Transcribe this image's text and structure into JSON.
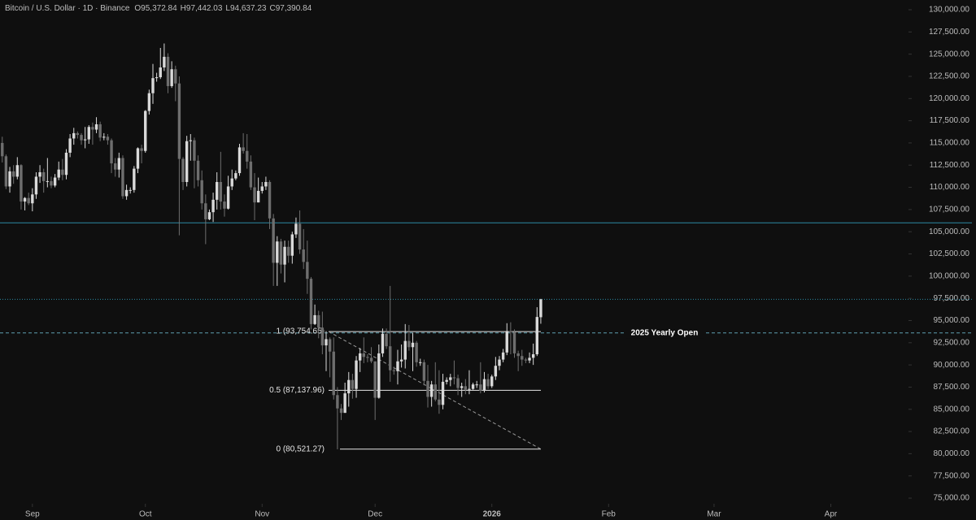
{
  "chart_data": {
    "type": "candlestick",
    "title": "Bitcoin / U.S. Dollar · 1D · Binance",
    "ohlc_legend": [
      {
        "key": "O",
        "text": "95,372.84"
      },
      {
        "key": "H",
        "text": "97,442.03"
      },
      {
        "key": "L",
        "text": "94,637.23"
      },
      {
        "key": "C",
        "text": "97,390.84"
      }
    ],
    "up_color": "#d9d9d9",
    "down_color": "#6e6e6e",
    "open": [
      115000,
      113500,
      110100,
      111800,
      111200,
      112500,
      108400,
      108800,
      108200,
      109200,
      111200,
      111700,
      110700,
      110700,
      110200,
      111100,
      112000,
      111400,
      113900,
      115500,
      116100,
      115900,
      115300,
      115400,
      116800,
      116500,
      117100,
      115600,
      115700,
      115300,
      112700,
      112000,
      113300,
      109000,
      109700,
      109700,
      112100,
      114400,
      114100,
      118600,
      120600,
      122300,
      122400,
      123500,
      124700,
      121400,
      123300,
      121700,
      113200,
      110600,
      115200,
      115300,
      113000,
      110800,
      108200,
      106400,
      107200,
      108600,
      110600,
      108400,
      107600,
      110100,
      111000,
      111600,
      114500,
      114100,
      112900,
      110000,
      108300,
      109600,
      110100,
      110600,
      106500,
      101500,
      103900,
      101300,
      103300,
      102300,
      104700,
      105900,
      103000,
      101600,
      99700,
      94600,
      95600,
      94200,
      92200,
      92900,
      91500,
      86600,
      85100,
      84600,
      86800,
      88300,
      87300,
      90500,
      91300,
      90900,
      90800,
      90400,
      86300,
      91300,
      93500,
      92100,
      89400,
      89300,
      90400,
      90600,
      92700,
      92000,
      92500,
      90300,
      90300,
      88200,
      86400,
      87800,
      86100,
      85500,
      88100,
      88300,
      88600,
      88500,
      87400,
      87600,
      87200,
      87300,
      87800,
      87800,
      87100,
      88400,
      87600,
      88700,
      89900,
      90600,
      91400,
      93800,
      93700,
      91300,
      91000,
      90600,
      90500,
      90800,
      91200,
      95372.84
    ],
    "high": [
      115700,
      113700,
      112300,
      112500,
      113400,
      112600,
      108900,
      109400,
      109900,
      111700,
      112500,
      112100,
      113300,
      111200,
      111500,
      112900,
      113200,
      114300,
      116000,
      116700,
      116300,
      116100,
      116800,
      117000,
      117300,
      117900,
      117400,
      116100,
      116000,
      115500,
      113300,
      113900,
      113600,
      110300,
      110000,
      112400,
      114500,
      114800,
      118700,
      121000,
      123900,
      122900,
      125700,
      126200,
      125100,
      124200,
      123700,
      122500,
      113400,
      115800,
      116000,
      115600,
      113600,
      111900,
      109200,
      107500,
      109400,
      111700,
      114000,
      109200,
      111300,
      112000,
      111900,
      114900,
      116100,
      116000,
      113600,
      111600,
      111100,
      110600,
      111200,
      110800,
      107000,
      104500,
      104200,
      104000,
      104000,
      105000,
      106600,
      107400,
      105300,
      104000,
      99900,
      96800,
      96100,
      96000,
      93800,
      93100,
      93100,
      87500,
      85600,
      88000,
      89200,
      89000,
      91000,
      91900,
      93100,
      91200,
      92000,
      90400,
      92300,
      94100,
      94100,
      98900,
      89800,
      91700,
      92300,
      94600,
      94500,
      93600,
      92700,
      90700,
      90600,
      90000,
      88200,
      90300,
      89400,
      89000,
      88600,
      89000,
      90500,
      88900,
      88000,
      88400,
      89400,
      88000,
      88200,
      90300,
      89200,
      89000,
      88900,
      90900,
      91000,
      91800,
      94700,
      94800,
      94000,
      91600,
      91700,
      90800,
      91400,
      92400,
      96500,
      97442.03
    ],
    "low": [
      112800,
      109800,
      109400,
      110400,
      110900,
      107500,
      107400,
      108000,
      107300,
      108700,
      110500,
      109400,
      110000,
      109900,
      110000,
      110800,
      110800,
      110900,
      113400,
      114800,
      115500,
      114800,
      114400,
      114900,
      114800,
      116100,
      115200,
      115300,
      114800,
      111600,
      111200,
      111100,
      108700,
      108600,
      109300,
      109400,
      111600,
      112700,
      113900,
      118200,
      119400,
      121900,
      122200,
      123100,
      120600,
      121200,
      119700,
      104600,
      109700,
      110100,
      113000,
      109900,
      110100,
      107500,
      103600,
      106300,
      106100,
      107500,
      107500,
      106700,
      107500,
      109700,
      110800,
      111300,
      113800,
      112100,
      109700,
      106300,
      108300,
      109300,
      109700,
      105300,
      98900,
      98900,
      100300,
      99300,
      101500,
      101400,
      104300,
      102500,
      100800,
      98000,
      94000,
      94500,
      93000,
      91200,
      89300,
      88600,
      86100,
      80500,
      83800,
      84600,
      85300,
      86200,
      86300,
      89200,
      90200,
      90300,
      90200,
      83800,
      86200,
      90900,
      91800,
      88100,
      88900,
      87800,
      89700,
      89600,
      91600,
      89300,
      89800,
      89900,
      87700,
      85200,
      85300,
      85900,
      84500,
      85000,
      87800,
      87600,
      87800,
      86600,
      86400,
      86700,
      86700,
      87200,
      87400,
      86800,
      86900,
      87300,
      87400,
      88300,
      89400,
      90300,
      91100,
      91200,
      90800,
      89300,
      89900,
      90200,
      90200,
      90000,
      91000,
      94637.23
    ],
    "close": [
      113500,
      110100,
      111800,
      111200,
      112500,
      108400,
      108800,
      108200,
      109200,
      111200,
      111700,
      110700,
      110700,
      110200,
      111100,
      112000,
      111400,
      113900,
      115500,
      116100,
      115900,
      115300,
      115400,
      116800,
      116500,
      117100,
      115600,
      115700,
      115300,
      112700,
      112000,
      113300,
      109000,
      109700,
      109700,
      112100,
      114400,
      114100,
      118600,
      120600,
      122300,
      122400,
      123500,
      124700,
      121400,
      123300,
      121700,
      113200,
      110600,
      115200,
      115300,
      113000,
      110800,
      108200,
      106400,
      107200,
      108600,
      110600,
      108400,
      107600,
      110100,
      111000,
      111600,
      114500,
      114100,
      112900,
      110000,
      108300,
      109600,
      110100,
      110600,
      106500,
      101500,
      103900,
      101300,
      103300,
      102300,
      104700,
      105900,
      103000,
      101600,
      99700,
      94600,
      95600,
      94200,
      92200,
      92900,
      91500,
      86600,
      85100,
      84600,
      86800,
      88300,
      87300,
      90500,
      91300,
      90900,
      90800,
      90400,
      86300,
      91300,
      93500,
      92100,
      89400,
      89300,
      90400,
      90600,
      92700,
      92000,
      92500,
      90300,
      90300,
      88200,
      86400,
      87800,
      86100,
      85500,
      88100,
      88300,
      88600,
      88500,
      87400,
      87600,
      87200,
      87300,
      87800,
      87800,
      87100,
      88400,
      87600,
      88700,
      89900,
      90600,
      91400,
      93800,
      93700,
      91300,
      91000,
      90600,
      90500,
      90800,
      91200,
      95400,
      97390.84
    ],
    "xlim": [
      -0.6,
      240.2
    ],
    "xticks": [
      {
        "value": 8,
        "label": "Sep"
      },
      {
        "value": 38,
        "label": "Oct"
      },
      {
        "value": 69,
        "label": "Nov"
      },
      {
        "value": 99,
        "label": "Dec"
      },
      {
        "value": 130,
        "label": "2026"
      },
      {
        "value": 161,
        "label": "Feb"
      },
      {
        "value": 189,
        "label": "Mar"
      },
      {
        "value": 220,
        "label": "Apr"
      }
    ],
    "ylim": [
      74364,
      131098
    ],
    "yticks": [
      {
        "value": 75000,
        "label": "75,000.00"
      },
      {
        "value": 77500,
        "label": "77,500.00"
      },
      {
        "value": 80000,
        "label": "80,000.00"
      },
      {
        "value": 82500,
        "label": "82,500.00"
      },
      {
        "value": 85000,
        "label": "85,000.00"
      },
      {
        "value": 87500,
        "label": "87,500.00"
      },
      {
        "value": 90000,
        "label": "90,000.00"
      },
      {
        "value": 92500,
        "label": "92,500.00"
      },
      {
        "value": 95000,
        "label": "95,000.00"
      },
      {
        "value": 97500,
        "label": "97,500.00"
      },
      {
        "value": 100000,
        "label": "100,000.00"
      },
      {
        "value": 102500,
        "label": "102,500.00"
      },
      {
        "value": 105000,
        "label": "105,000.00"
      },
      {
        "value": 107500,
        "label": "107,500.00"
      },
      {
        "value": 110000,
        "label": "110,000.00"
      },
      {
        "value": 112500,
        "label": "112,500.00"
      },
      {
        "value": 115000,
        "label": "115,000.00"
      },
      {
        "value": 117500,
        "label": "117,500.00"
      },
      {
        "value": 120000,
        "label": "120,000.00"
      },
      {
        "value": 122500,
        "label": "122,500.00"
      },
      {
        "value": 125000,
        "label": "125,000.00"
      },
      {
        "value": 127500,
        "label": "127,500.00"
      },
      {
        "value": 130000,
        "label": "130,000.00"
      }
    ],
    "resistance": {
      "value": 106000,
      "color": "#2b8aa3"
    },
    "yearly_open": {
      "label": "2025 Yearly Open",
      "value": 93600,
      "color": "#5f9fb0"
    },
    "fib_levels": [
      {
        "label": "1 (93,754.65)",
        "value": 93754.65
      },
      {
        "label": "0.5 (87,137.96)",
        "value": 87137.96
      },
      {
        "label": "0 (80,521.27)",
        "value": 80521.27
      }
    ]
  }
}
